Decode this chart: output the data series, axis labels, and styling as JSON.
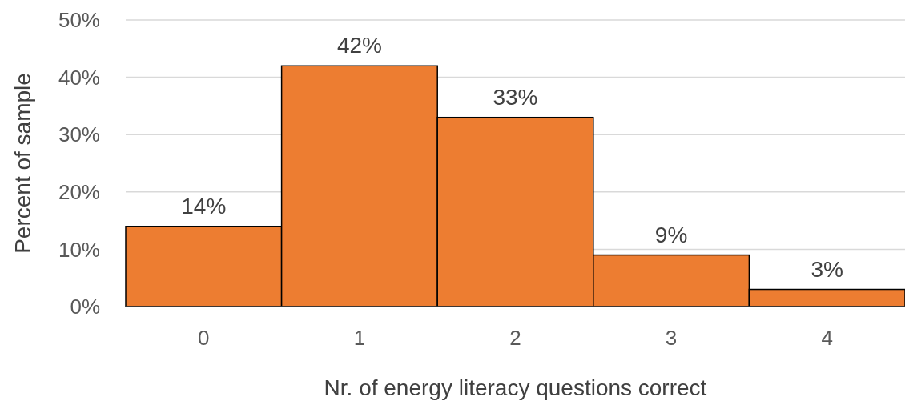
{
  "chart_data": {
    "type": "bar",
    "xlabel": "Nr. of energy literacy questions correct",
    "ylabel": "Percent of sample",
    "categories": [
      "0",
      "1",
      "2",
      "3",
      "4"
    ],
    "values": [
      14,
      42,
      33,
      9,
      3
    ],
    "value_labels": [
      "14%",
      "42%",
      "33%",
      "9%",
      "3%"
    ],
    "color": "#ed7d31",
    "ylim": [
      0,
      50
    ],
    "yticks": [
      {
        "value": 0,
        "label": "0%"
      },
      {
        "value": 10,
        "label": "10%"
      },
      {
        "value": 20,
        "label": "20%"
      },
      {
        "value": 30,
        "label": "30%"
      },
      {
        "value": 40,
        "label": "40%"
      },
      {
        "value": 50,
        "label": "50%"
      }
    ],
    "grid": "y"
  }
}
